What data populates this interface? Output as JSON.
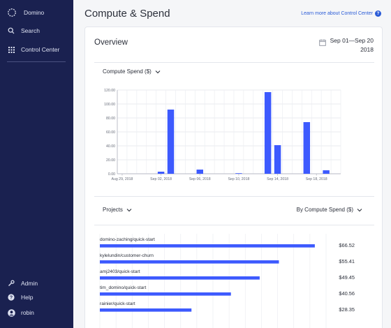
{
  "app": {
    "name": "Domino"
  },
  "sidebar": {
    "top_items": [
      {
        "label": "Search",
        "icon": "search-icon"
      },
      {
        "label": "Control Center",
        "icon": "grid-icon"
      }
    ],
    "bottom_items": [
      {
        "label": "Admin",
        "icon": "wrench-icon"
      },
      {
        "label": "Help",
        "icon": "help-icon"
      },
      {
        "label": "robin",
        "icon": "avatar-icon"
      }
    ]
  },
  "header": {
    "title": "Compute & Spend",
    "learn_link": "Learn more about Control Center"
  },
  "overview": {
    "title": "Overview",
    "date_line1": "Sep 01—Sep 20",
    "date_line2": "2018"
  },
  "compute_chart_menu": {
    "label": "Compute Spend ($)"
  },
  "projects_menu": {
    "label": "Projects"
  },
  "sort_menu": {
    "label": "By Compute Spend ($)"
  },
  "colors": {
    "accent": "#3d5afe",
    "sidebar": "#1a2150",
    "link": "#2a5bd7"
  },
  "chart_data": [
    {
      "type": "bar",
      "title": "",
      "ylabel": "Compute Spend ($)",
      "ylim": [
        0,
        120
      ],
      "y_ticks": [
        "0.00",
        "20.00",
        "40.00",
        "60.00",
        "80.00",
        "100.00",
        "120.00"
      ],
      "x_tick_labels": [
        "Aug 29, 2018",
        "Sep 02, 2018",
        "Sep 06, 2018",
        "Sep 10, 2018",
        "Sep 14, 2018",
        "Sep 18, 2018"
      ],
      "x_tick_index": [
        0,
        4,
        8,
        12,
        16,
        20
      ],
      "categories": [
        "Aug 29",
        "Aug 30",
        "Aug 31",
        "Sep 01",
        "Sep 02",
        "Sep 03",
        "Sep 04",
        "Sep 05",
        "Sep 06",
        "Sep 07",
        "Sep 08",
        "Sep 09",
        "Sep 10",
        "Sep 11",
        "Sep 12",
        "Sep 13",
        "Sep 14",
        "Sep 15",
        "Sep 16",
        "Sep 17",
        "Sep 18",
        "Sep 19",
        "Sep 20"
      ],
      "values": [
        0,
        0,
        0,
        0,
        3,
        92,
        0,
        0,
        6,
        0,
        0,
        0,
        0.5,
        0,
        0,
        117,
        41,
        0,
        0,
        74,
        0,
        5,
        0
      ],
      "grid": true
    },
    {
      "type": "bar",
      "orientation": "horizontal",
      "title": "",
      "xlim": [
        0,
        70
      ],
      "x_ticks": [
        0,
        5,
        10,
        15,
        20,
        25,
        30,
        35,
        40,
        45,
        50,
        55,
        60,
        65,
        70
      ],
      "categories": [
        "domino-zaching/quick-start",
        "kylelundin/customer-churn",
        "amj2403/quick-start",
        "tim_domino/quick-start",
        "rainier/quick-start"
      ],
      "values": [
        66.52,
        55.41,
        49.45,
        40.56,
        28.35
      ],
      "value_labels": [
        "$66.52",
        "$55.41",
        "$49.45",
        "$40.56",
        "$28.35"
      ]
    }
  ]
}
